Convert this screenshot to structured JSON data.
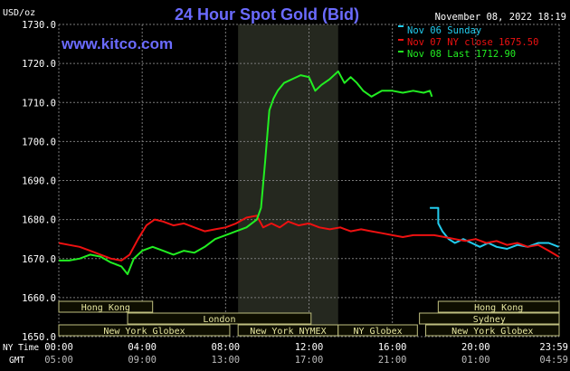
{
  "header": {
    "units": "USD/oz",
    "title": "24 Hour Spot Gold (Bid)",
    "datetime": "November 08, 2022 18:19",
    "watermark": "www.kitco.com"
  },
  "legend": [
    {
      "label": "Nov 06 Sunday",
      "color": "#22ccee"
    },
    {
      "label": "Nov 07 NY close 1675.50",
      "color": "#ee1111"
    },
    {
      "label": "Nov 08 Last 1712.90",
      "color": "#22ee22"
    }
  ],
  "axis_labels": {
    "ny_time": "NY Time",
    "gmt": "GMT"
  },
  "colors": {
    "background": "#000000",
    "grid": "#7a7a7a",
    "highlight_band": "#25281f",
    "session_fill": "#0e0e00",
    "session_border": "#bfbf80",
    "session_text": "#e6e6a0",
    "title": "#6b6bff",
    "watermark": "#6b6bff"
  },
  "chart_data": {
    "type": "line",
    "title": "24 Hour Spot Gold (Bid)",
    "ylabel": "USD/oz",
    "ylim": [
      1650,
      1730
    ],
    "xlim": [
      0,
      24
    ],
    "y_ticks": [
      "1650.0",
      "1660.0",
      "1670.0",
      "1680.0",
      "1690.0",
      "1700.0",
      "1710.0",
      "1720.0",
      "1730.0"
    ],
    "x_ticks_ny": [
      "00:00",
      "04:00",
      "08:00",
      "12:00",
      "16:00",
      "20:00",
      "23:59"
    ],
    "x_ticks_gmt": [
      "05:00",
      "09:00",
      "13:00",
      "17:00",
      "21:00",
      "01:00",
      "04:59"
    ],
    "highlight_range": [
      8.6,
      13.4
    ],
    "grid": true,
    "legend_position": "top-right",
    "series": [
      {
        "name": "Nov 06 Sunday",
        "color": "#22ccee",
        "x": [
          17.8,
          18.2,
          18.2,
          18.4,
          18.7,
          19.0,
          19.4,
          19.8,
          20.2,
          20.6,
          21.0,
          21.5,
          22.0,
          22.5,
          23.0,
          23.5,
          23.98
        ],
        "y": [
          1683.0,
          1683.0,
          1679.0,
          1677.0,
          1675.0,
          1674.0,
          1675.0,
          1674.0,
          1673.0,
          1674.0,
          1673.0,
          1672.5,
          1673.5,
          1673.0,
          1674.0,
          1674.0,
          1673.0
        ]
      },
      {
        "name": "Nov 07 NY close 1675.50",
        "color": "#ee1111",
        "x": [
          0,
          0.5,
          1.0,
          1.5,
          2.0,
          2.5,
          3.0,
          3.4,
          3.8,
          4.2,
          4.6,
          5.0,
          5.5,
          6.0,
          6.5,
          7.0,
          7.5,
          8.0,
          8.5,
          9.0,
          9.5,
          9.8,
          10.2,
          10.6,
          11.0,
          11.5,
          12.0,
          12.5,
          13.0,
          13.5,
          14.0,
          14.5,
          15.0,
          15.5,
          16.0,
          16.5,
          17.0,
          17.5,
          18.0,
          18.5,
          19.0,
          19.5,
          20.0,
          20.5,
          21.0,
          21.5,
          22.0,
          22.5,
          23.0,
          23.5,
          23.98
        ],
        "y": [
          1674.0,
          1673.5,
          1673.0,
          1672.0,
          1671.0,
          1670.0,
          1669.5,
          1671.0,
          1675.0,
          1678.5,
          1680.0,
          1679.5,
          1678.5,
          1679.0,
          1678.0,
          1677.0,
          1677.5,
          1678.0,
          1679.0,
          1680.5,
          1681.0,
          1678.0,
          1679.0,
          1678.0,
          1679.5,
          1678.5,
          1679.0,
          1678.0,
          1677.5,
          1678.0,
          1677.0,
          1677.5,
          1677.0,
          1676.5,
          1676.0,
          1675.5,
          1676.0,
          1676.0,
          1676.0,
          1675.5,
          1675.0,
          1674.5,
          1675.0,
          1674.0,
          1674.5,
          1673.5,
          1674.0,
          1673.0,
          1673.5,
          1672.0,
          1670.5
        ]
      },
      {
        "name": "Nov 08 Last 1712.90",
        "color": "#22ee22",
        "x": [
          0,
          0.5,
          1.0,
          1.5,
          2.0,
          2.5,
          3.0,
          3.3,
          3.6,
          4.0,
          4.5,
          5.0,
          5.5,
          6.0,
          6.5,
          7.0,
          7.5,
          8.0,
          8.5,
          9.0,
          9.5,
          9.7,
          9.9,
          10.1,
          10.3,
          10.5,
          10.8,
          11.2,
          11.6,
          12.0,
          12.3,
          12.6,
          13.0,
          13.4,
          13.7,
          14.0,
          14.3,
          14.6,
          15.0,
          15.5,
          16.0,
          16.5,
          17.0,
          17.5,
          17.8,
          17.9
        ],
        "y": [
          1669.5,
          1669.5,
          1670.0,
          1671.0,
          1670.5,
          1669.0,
          1668.0,
          1666.0,
          1670.0,
          1672.0,
          1673.0,
          1672.0,
          1671.0,
          1672.0,
          1671.5,
          1673.0,
          1675.0,
          1676.0,
          1677.0,
          1678.0,
          1680.0,
          1683.0,
          1695.0,
          1708.0,
          1711.0,
          1713.0,
          1715.0,
          1716.0,
          1717.0,
          1716.5,
          1713.0,
          1714.5,
          1716.0,
          1718.0,
          1715.0,
          1716.5,
          1715.0,
          1713.0,
          1711.5,
          1713.0,
          1713.0,
          1712.5,
          1713.0,
          1712.5,
          1713.0,
          1711.5
        ]
      }
    ],
    "sessions": [
      {
        "label": "Hong Kong",
        "row": 1,
        "start": 0,
        "end": 4.5
      },
      {
        "label": "Hong Kong",
        "row": 1,
        "start": 18.2,
        "end": 24
      },
      {
        "label": "London",
        "row": 2,
        "start": 3.3,
        "end": 12.1
      },
      {
        "label": "Sydney",
        "row": 2,
        "start": 17.3,
        "end": 24
      },
      {
        "label": "New York Globex",
        "row": 3,
        "start": 0,
        "end": 8.2
      },
      {
        "label": "New York NYMEX",
        "row": 3,
        "start": 8.6,
        "end": 13.4
      },
      {
        "label": "NY Globex",
        "row": 3,
        "start": 13.4,
        "end": 17.2
      },
      {
        "label": "New York Globex",
        "row": 3,
        "start": 17.6,
        "end": 24
      }
    ]
  }
}
